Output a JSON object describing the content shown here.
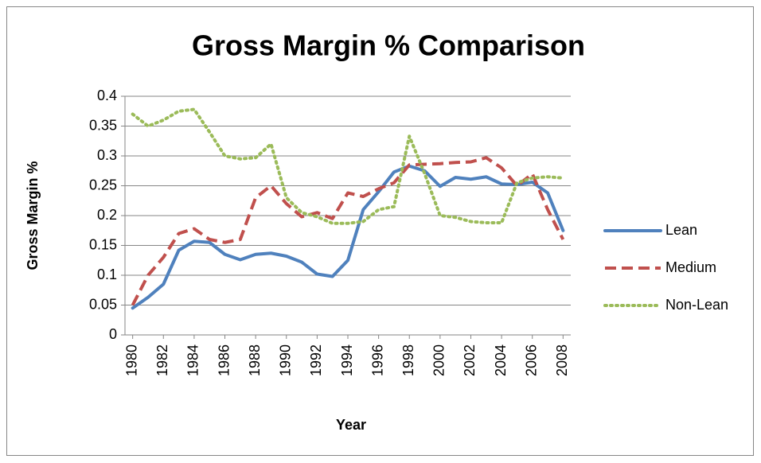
{
  "chart_data": {
    "type": "line",
    "title": "Gross Margin % Comparison",
    "x_label": "Year",
    "y_label": "Gross Margin %",
    "x": [
      1980,
      1981,
      1982,
      1983,
      1984,
      1985,
      1986,
      1987,
      1988,
      1989,
      1990,
      1991,
      1992,
      1993,
      1994,
      1995,
      1996,
      1997,
      1998,
      1999,
      2000,
      2001,
      2002,
      2003,
      2004,
      2005,
      2006,
      2007,
      2008
    ],
    "xlim": [
      1979.5,
      2008.5
    ],
    "xticks": [
      1980,
      1982,
      1984,
      1986,
      1988,
      1990,
      1992,
      1994,
      1996,
      1998,
      2000,
      2002,
      2004,
      2006,
      2008
    ],
    "ylim": [
      0,
      0.4
    ],
    "yticks": [
      0,
      0.05,
      0.1,
      0.15,
      0.2,
      0.25,
      0.3,
      0.35,
      0.4
    ],
    "grid": true,
    "legend": "right",
    "series": [
      {
        "name": "Lean",
        "color": "#4f81bd",
        "style": "solid",
        "values": [
          0.045,
          0.063,
          0.085,
          0.142,
          0.157,
          0.155,
          0.135,
          0.126,
          0.135,
          0.137,
          0.132,
          0.122,
          0.102,
          0.098,
          0.125,
          0.21,
          0.24,
          0.273,
          0.283,
          0.275,
          0.249,
          0.264,
          0.261,
          0.265,
          0.253,
          0.252,
          0.256,
          0.238,
          0.175
        ]
      },
      {
        "name": "Medium",
        "color": "#c0504d",
        "style": "dash",
        "values": [
          0.05,
          0.1,
          0.13,
          0.17,
          0.178,
          0.16,
          0.155,
          0.16,
          0.23,
          0.25,
          0.22,
          0.198,
          0.205,
          0.195,
          0.238,
          0.232,
          0.245,
          0.255,
          0.285,
          0.286,
          0.287,
          0.289,
          0.29,
          0.297,
          0.28,
          0.25,
          0.27,
          0.21,
          0.16
        ]
      },
      {
        "name": "Non-Lean",
        "color": "#9bbb59",
        "style": "dot",
        "values": [
          0.37,
          0.35,
          0.36,
          0.375,
          0.378,
          0.34,
          0.3,
          0.295,
          0.297,
          0.32,
          0.23,
          0.205,
          0.198,
          0.187,
          0.187,
          0.19,
          0.21,
          0.215,
          0.333,
          0.27,
          0.2,
          0.197,
          0.19,
          0.188,
          0.188,
          0.255,
          0.263,
          0.265,
          0.263
        ]
      }
    ]
  }
}
